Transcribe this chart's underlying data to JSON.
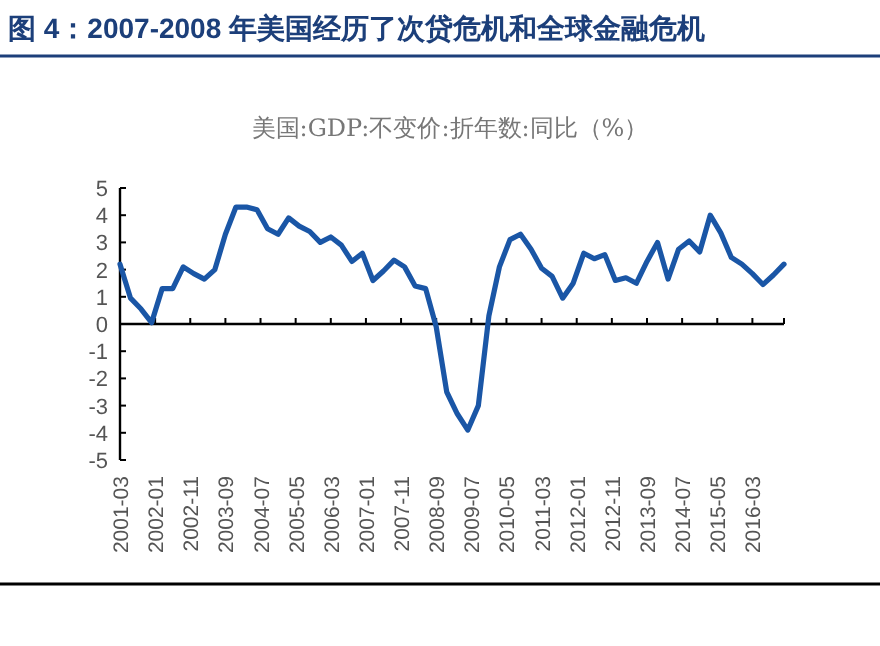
{
  "chart_data": {
    "type": "line",
    "title": "图 4：2007-2008 年美国经历了次贷危机和全球金融危机",
    "subtitle": "美国:GDP:不变价:折年数:同比（%）",
    "x": [
      "2001-03",
      "2001-06",
      "2001-09",
      "2001-12",
      "2002-03",
      "2002-06",
      "2002-09",
      "2002-12",
      "2003-03",
      "2003-06",
      "2003-09",
      "2003-12",
      "2004-03",
      "2004-06",
      "2004-09",
      "2004-12",
      "2005-03",
      "2005-06",
      "2005-09",
      "2005-12",
      "2006-03",
      "2006-06",
      "2006-09",
      "2006-12",
      "2007-03",
      "2007-06",
      "2007-09",
      "2007-12",
      "2008-03",
      "2008-06",
      "2008-09",
      "2008-12",
      "2009-03",
      "2009-06",
      "2009-09",
      "2009-12",
      "2010-03",
      "2010-06",
      "2010-09",
      "2010-12",
      "2011-03",
      "2011-06",
      "2011-09",
      "2011-12",
      "2012-03",
      "2012-06",
      "2012-09",
      "2012-12",
      "2013-03",
      "2013-06",
      "2013-09",
      "2013-12",
      "2014-03",
      "2014-06",
      "2014-09",
      "2014-12",
      "2015-03",
      "2015-06",
      "2015-09",
      "2015-12",
      "2016-03",
      "2016-06",
      "2016-09",
      "2016-12"
    ],
    "series": [
      {
        "color": "#1a56a6",
        "values": [
          2.2,
          0.95,
          0.55,
          0.05,
          1.3,
          1.3,
          2.1,
          1.85,
          1.65,
          2.0,
          3.3,
          4.3,
          4.3,
          4.2,
          3.5,
          3.3,
          3.9,
          3.6,
          3.4,
          3.0,
          3.2,
          2.9,
          2.3,
          2.6,
          1.6,
          1.95,
          2.35,
          2.1,
          1.4,
          1.3,
          -0.1,
          -2.5,
          -3.3,
          -3.9,
          -3.0,
          0.3,
          2.1,
          3.1,
          3.3,
          2.75,
          2.05,
          1.75,
          0.95,
          1.5,
          2.6,
          2.4,
          2.55,
          1.6,
          1.7,
          1.5,
          2.3,
          3.0,
          1.65,
          2.75,
          3.05,
          2.65,
          4.0,
          3.35,
          2.45,
          2.2,
          1.85,
          1.45,
          1.8,
          2.2
        ]
      }
    ],
    "xlim": [
      "2001-03",
      "2016-12"
    ],
    "xticks": [
      "2001-03",
      "2002-01",
      "2002-11",
      "2003-09",
      "2004-07",
      "2005-05",
      "2006-03",
      "2007-01",
      "2007-11",
      "2008-09",
      "2009-07",
      "2010-05",
      "2011-03",
      "2012-01",
      "2012-11",
      "2013-09",
      "2014-07",
      "2015-05",
      "2016-03"
    ],
    "ylim": [
      -5,
      5
    ],
    "yticks": [
      -5,
      -4,
      -3,
      -2,
      -1,
      0,
      1,
      2,
      3,
      4,
      5
    ],
    "marker": "none",
    "line_style": "solid"
  }
}
